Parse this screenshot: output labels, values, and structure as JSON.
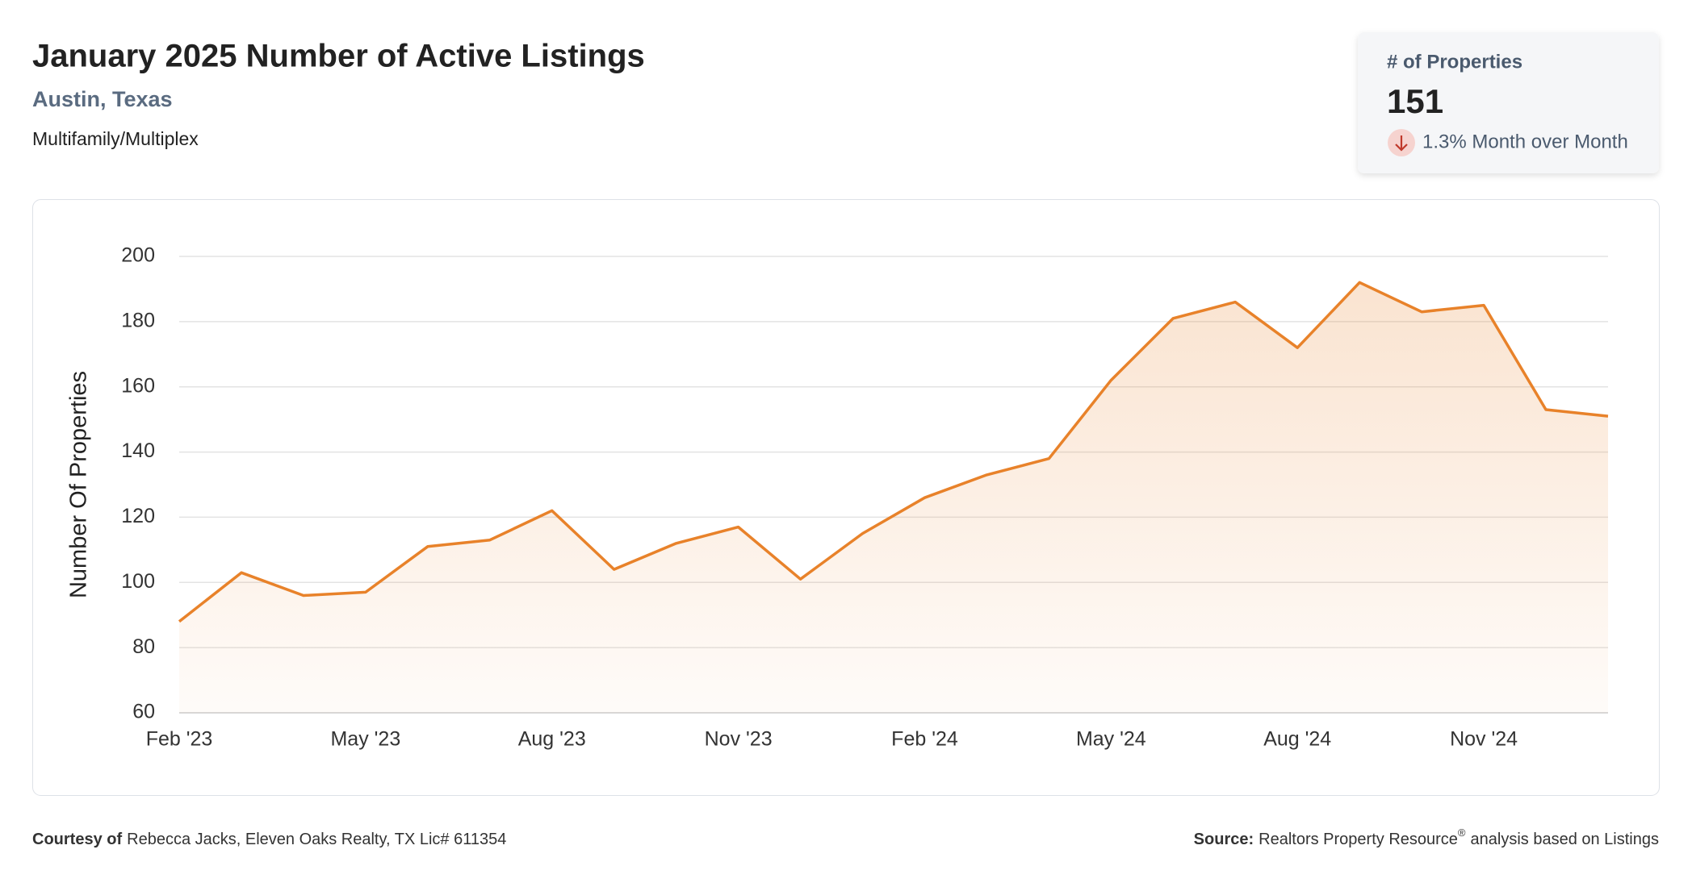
{
  "header": {
    "title": "January 2025 Number of Active Listings",
    "location": "Austin, Texas",
    "property_type": "Multifamily/Multiplex"
  },
  "kpi": {
    "label": "# of Properties",
    "value": 151,
    "change": "1.3% Month over Month"
  },
  "chart_data": {
    "type": "line",
    "y_label": "Number Of Properties",
    "categories": [
      "Feb '23",
      null,
      null,
      "May '23",
      null,
      null,
      "Aug '23",
      null,
      null,
      "Nov '23",
      null,
      null,
      "Feb '24",
      null,
      null,
      "May '24",
      null,
      null,
      "Aug '24",
      null,
      null,
      "Nov '24",
      null,
      null
    ],
    "values": [
      88,
      103,
      96,
      97,
      111,
      113,
      122,
      104,
      112,
      117,
      101,
      115,
      126,
      133,
      138,
      162,
      181,
      186,
      172,
      192,
      183,
      185,
      153,
      151
    ],
    "color": "#e8822a",
    "area": true,
    "ylim": [
      60,
      200
    ],
    "yticks": [
      60,
      80,
      100,
      120,
      140,
      160,
      180,
      200
    ],
    "grid": true
  },
  "footer": {
    "courtesy_label": "Courtesy of",
    "courtesy": "Rebecca Jacks, Eleven Oaks Realty, TX Lic# 611354",
    "source_label": "Source:",
    "source": "Realtors Property Resource",
    "source_mark": "®",
    "source_rest": "analysis based on Listings"
  }
}
